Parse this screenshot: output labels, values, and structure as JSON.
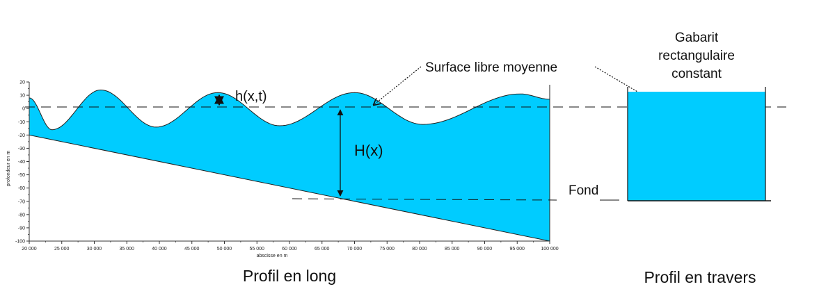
{
  "labels": {
    "wave_height": "h(x,t)",
    "depth": "H(x)",
    "mean_surface": "Surface libre moyenne",
    "bottom": "Fond",
    "gauge_line1": "Gabarit",
    "gauge_line2": "rectangulaire",
    "gauge_line3": "constant",
    "profile_long": "Profil en long",
    "profile_cross": "Profil en travers"
  },
  "chart_data": {
    "type": "area",
    "xlabel": "abscisse en m",
    "ylabel": "profondeur en m",
    "xlim": [
      20000,
      100000
    ],
    "ylim": [
      -100,
      20
    ],
    "x_ticks": [
      "20 000",
      "25 000",
      "30 000",
      "35 000",
      "40 000",
      "45 000",
      "50 000",
      "55 000",
      "60 000",
      "65 000",
      "70 000",
      "75 000",
      "80 000",
      "85 000",
      "90 000",
      "95 000",
      "100 000"
    ],
    "y_ticks": [
      "20",
      "10",
      "0",
      "-10",
      "-20",
      "-30",
      "-40",
      "-50",
      "-60",
      "-70",
      "-80",
      "-90",
      "-100"
    ],
    "surface": {
      "x": [
        20000,
        23500,
        31000,
        39500,
        49000,
        58500,
        70000,
        80500,
        95500,
        100000
      ],
      "y": [
        8,
        -16,
        14,
        -14,
        12,
        -13,
        12,
        -12,
        11,
        7
      ]
    },
    "bottom": {
      "x": [
        20000,
        100000
      ],
      "y": [
        -20,
        -105
      ]
    },
    "mean_level": 0,
    "fill_color": "#00CCFF"
  }
}
